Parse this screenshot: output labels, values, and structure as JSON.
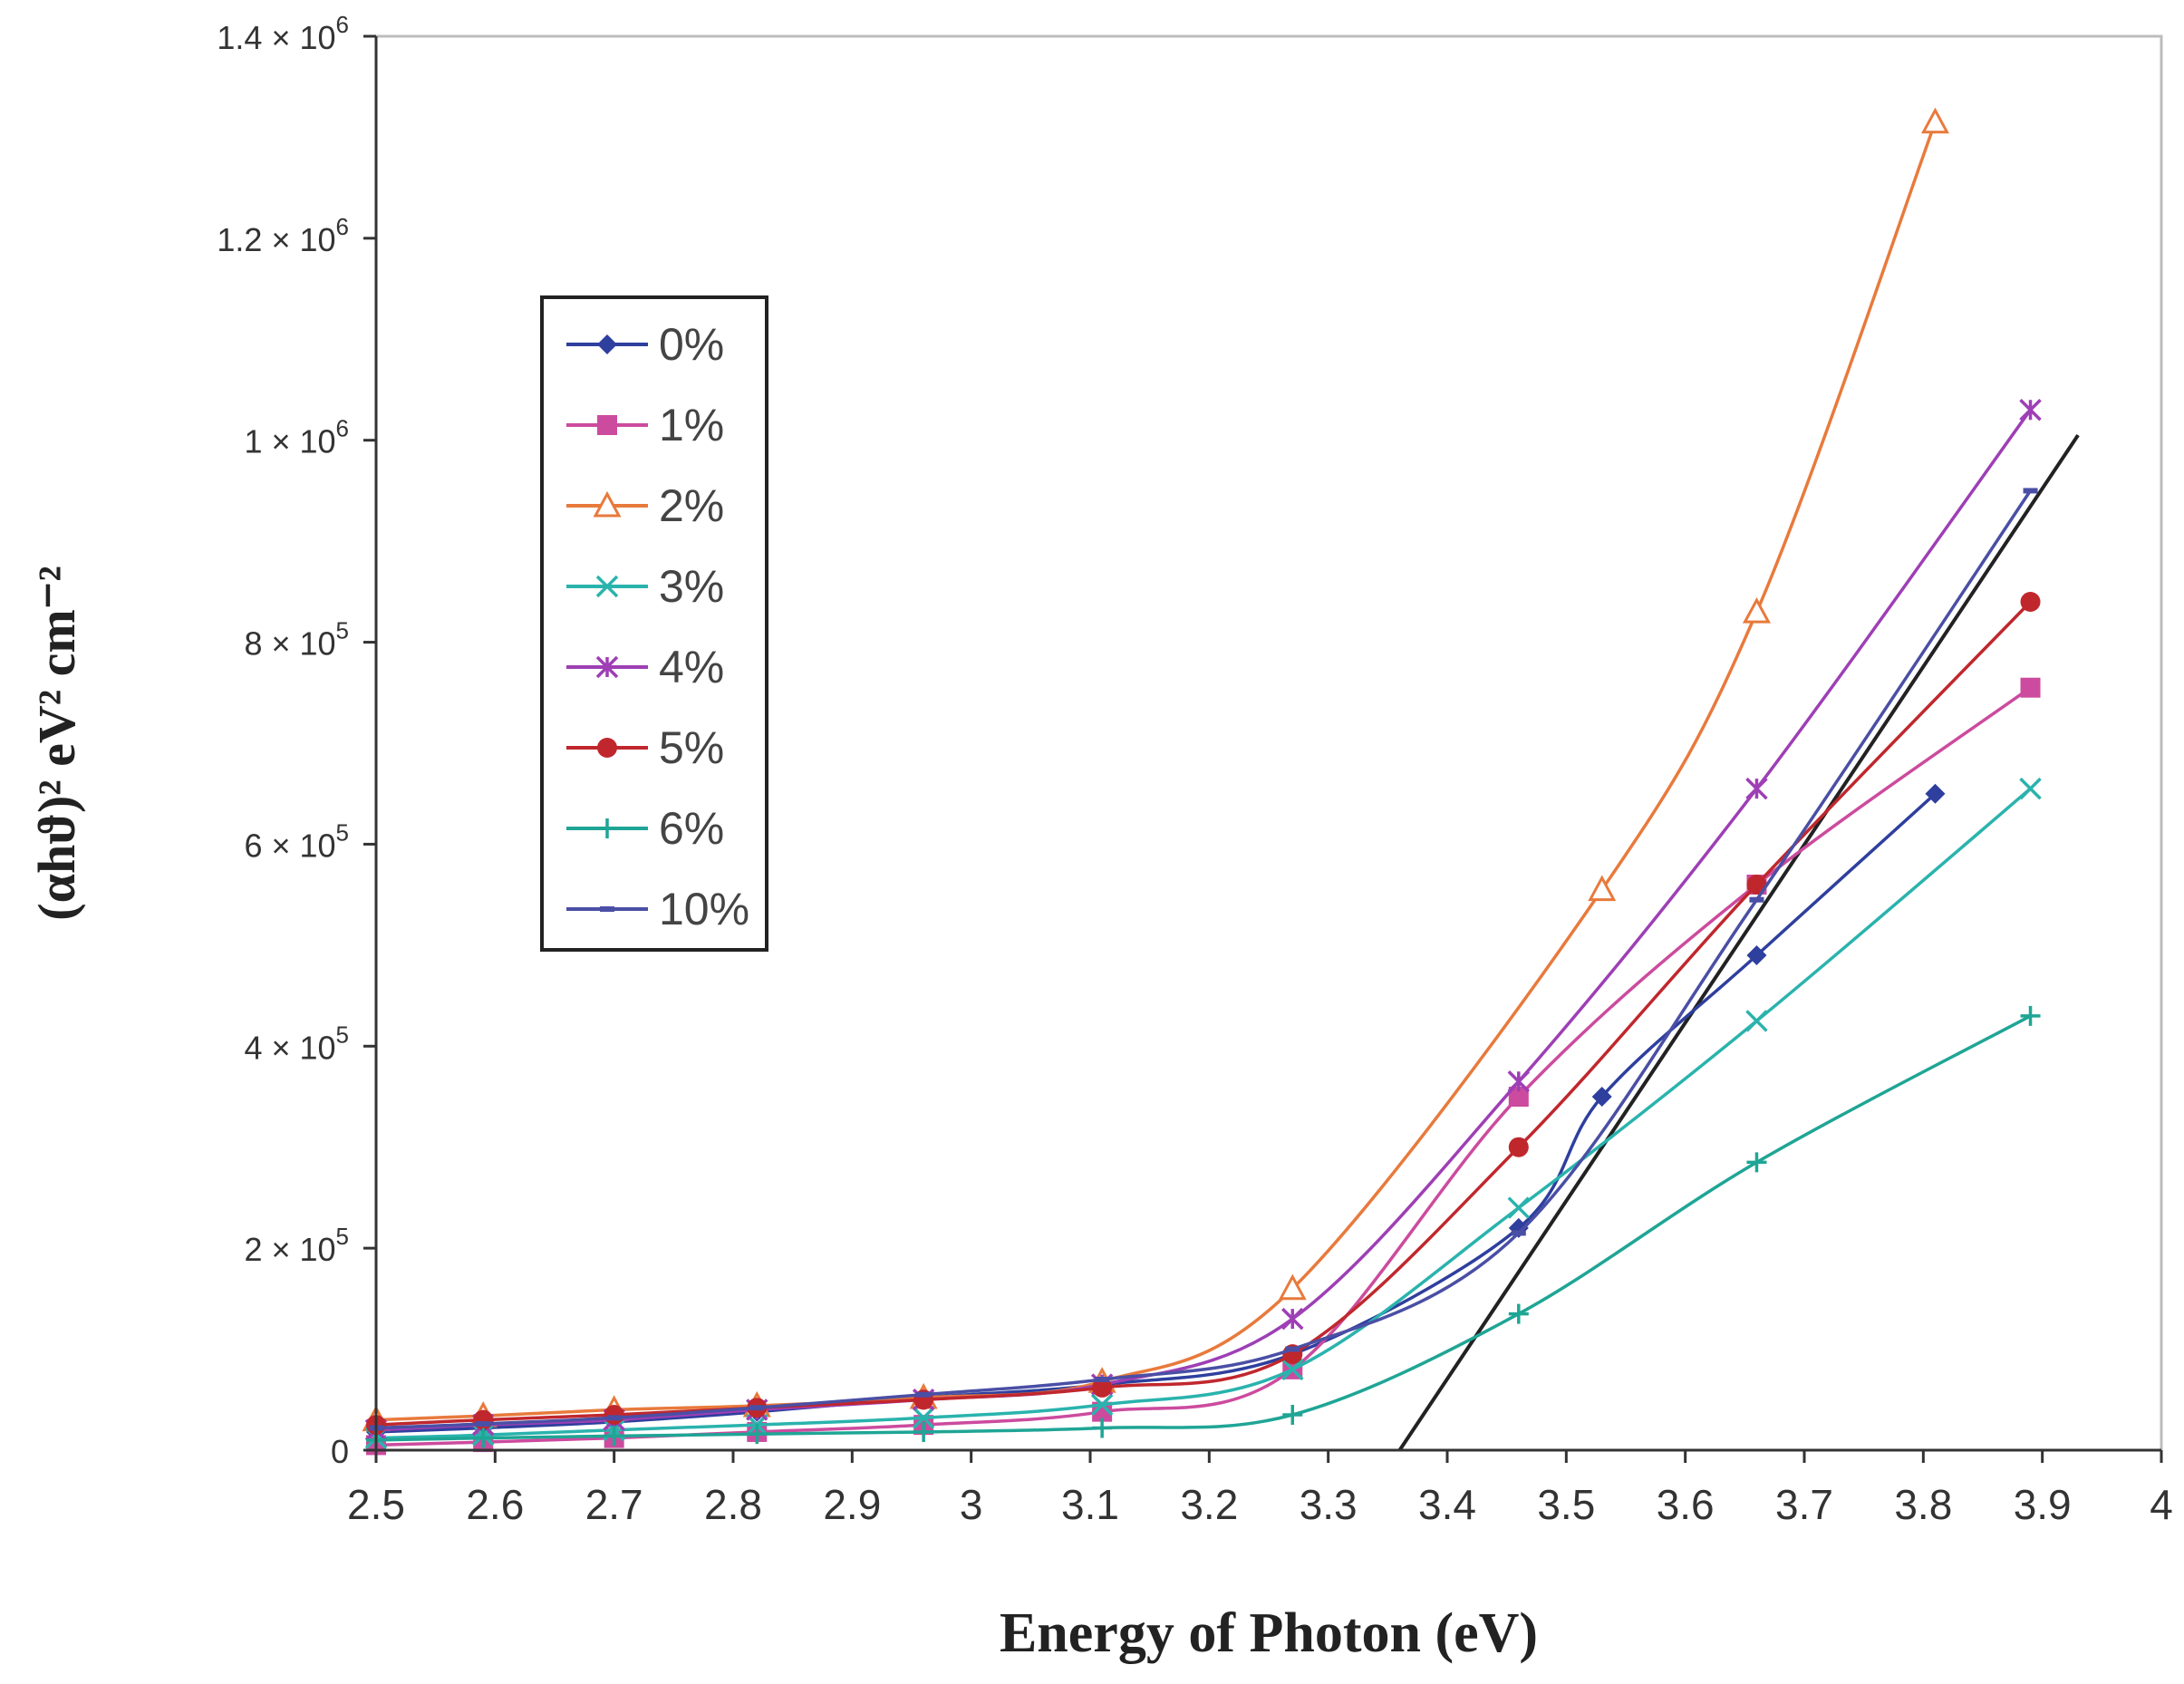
{
  "chart_data": {
    "type": "line",
    "title": "",
    "xlabel": "Energy of Photon (eV)",
    "ylabel": "(αhϑ)² eV² cm⁻²",
    "xlim": [
      2.5,
      4.0
    ],
    "ylim": [
      0,
      1400000
    ],
    "x_ticks": [
      2.5,
      2.6,
      2.7,
      2.8,
      2.9,
      3.0,
      3.1,
      3.2,
      3.3,
      3.4,
      3.5,
      3.6,
      3.7,
      3.8,
      3.9,
      4.0
    ],
    "x_tick_labels": [
      "2.5",
      "2.6",
      "2.7",
      "2.8",
      "2.9",
      "3",
      "3.1",
      "3.2",
      "3.3",
      "3.4",
      "3.5",
      "3.6",
      "3.7",
      "3.8",
      "3.9",
      "4"
    ],
    "y_ticks": [
      {
        "value": 0,
        "mantissa": "0",
        "exponent": ""
      },
      {
        "value": 200000,
        "mantissa": "2 × 10",
        "exponent": "5"
      },
      {
        "value": 400000,
        "mantissa": "4 × 10",
        "exponent": "5"
      },
      {
        "value": 600000,
        "mantissa": "6 × 10",
        "exponent": "5"
      },
      {
        "value": 800000,
        "mantissa": "8 × 10",
        "exponent": "5"
      },
      {
        "value": 1000000,
        "mantissa": "1 × 10",
        "exponent": "6"
      },
      {
        "value": 1200000,
        "mantissa": "1.2 × 10",
        "exponent": "6"
      },
      {
        "value": 1400000,
        "mantissa": "1.4 × 10",
        "exponent": "6"
      }
    ],
    "legend_position": "upper-left",
    "series": [
      {
        "name": "0%",
        "color": "#2e3f9e",
        "marker": "diamond",
        "x": [
          2.5,
          2.59,
          2.7,
          2.82,
          2.96,
          3.11,
          3.27,
          3.46,
          3.53,
          3.66,
          3.81
        ],
        "y": [
          18000,
          22000,
          28000,
          38000,
          52000,
          65000,
          95000,
          220000,
          350000,
          490000,
          650000
        ]
      },
      {
        "name": "1%",
        "color": "#cc4b9e",
        "marker": "square",
        "x": [
          2.5,
          2.59,
          2.7,
          2.82,
          2.96,
          3.11,
          3.27,
          3.46,
          3.66,
          3.89
        ],
        "y": [
          5000,
          8000,
          12000,
          18000,
          25000,
          38000,
          80000,
          350000,
          560000,
          755000
        ]
      },
      {
        "name": "2%",
        "color": "#e87a3c",
        "marker": "triangle",
        "x": [
          2.5,
          2.59,
          2.7,
          2.82,
          2.96,
          3.11,
          3.27,
          3.53,
          3.66,
          3.81
        ],
        "y": [
          30000,
          34000,
          40000,
          44000,
          52000,
          68000,
          160000,
          555000,
          830000,
          1315000
        ]
      },
      {
        "name": "3%",
        "color": "#2ab3ad",
        "marker": "x",
        "x": [
          2.5,
          2.59,
          2.7,
          2.82,
          2.96,
          3.11,
          3.27,
          3.46,
          3.66,
          3.89
        ],
        "y": [
          12000,
          15000,
          20000,
          25000,
          32000,
          45000,
          80000,
          240000,
          425000,
          655000
        ]
      },
      {
        "name": "4%",
        "color": "#9e3fb5",
        "marker": "star",
        "x": [
          2.5,
          2.59,
          2.7,
          2.82,
          2.96,
          3.11,
          3.27,
          3.46,
          3.66,
          3.89
        ],
        "y": [
          20000,
          25000,
          30000,
          40000,
          50000,
          65000,
          130000,
          365000,
          655000,
          1030000
        ]
      },
      {
        "name": "5%",
        "color": "#c0272d",
        "marker": "circle",
        "x": [
          2.5,
          2.59,
          2.7,
          2.82,
          2.96,
          3.11,
          3.27,
          3.46,
          3.66,
          3.89
        ],
        "y": [
          25000,
          30000,
          35000,
          42000,
          50000,
          62000,
          95000,
          300000,
          560000,
          840000
        ]
      },
      {
        "name": "6%",
        "color": "#1fa595",
        "marker": "plus",
        "x": [
          2.5,
          2.59,
          2.7,
          2.82,
          2.96,
          3.11,
          3.27,
          3.46,
          3.66,
          3.89
        ],
        "y": [
          10000,
          12000,
          14000,
          16000,
          18000,
          22000,
          35000,
          135000,
          285000,
          430000
        ]
      },
      {
        "name": "10%",
        "color": "#4a4fa5",
        "marker": "dash",
        "x": [
          2.5,
          2.59,
          2.7,
          2.82,
          2.96,
          3.11,
          3.27,
          3.46,
          3.66,
          3.89
        ],
        "y": [
          22000,
          26000,
          32000,
          42000,
          55000,
          70000,
          100000,
          215000,
          545000,
          950000
        ]
      }
    ],
    "annotations": [
      {
        "type": "tangent-line",
        "color": "#222222",
        "x": [
          3.36,
          3.93
        ],
        "y": [
          0,
          1005000
        ]
      }
    ]
  }
}
